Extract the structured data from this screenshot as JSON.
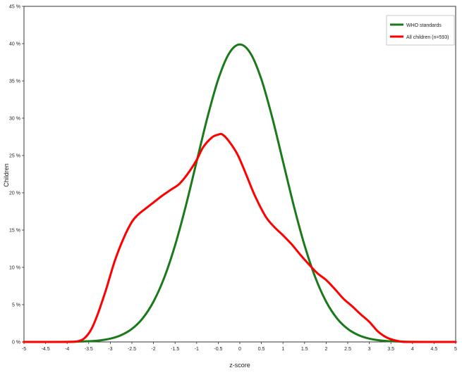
{
  "chart_data": {
    "type": "line",
    "xlabel": "z-score",
    "ylabel": "Children",
    "xlim": [
      -5,
      5
    ],
    "ylim": [
      0,
      45
    ],
    "x_ticks": [
      "-5",
      "-4.5",
      "-4",
      "-3.5",
      "-3",
      "-2.5",
      "-2",
      "-1.5",
      "-1",
      "-0.5",
      "0",
      "0.5",
      "1",
      "1.5",
      "2",
      "2.5",
      "3",
      "3.5",
      "4",
      "4.5",
      "5"
    ],
    "y_ticks": [
      "0 %",
      "5 %",
      "10 %",
      "15 %",
      "20 %",
      "25 %",
      "30 %",
      "35 %",
      "40 %",
      "45 %"
    ],
    "grid": false,
    "legend_position": "top-right",
    "series": [
      {
        "name": "WHO standards",
        "color": "#1a7a1a",
        "x": [
          -5,
          -4.5,
          -4,
          -3.5,
          -3.25,
          -3,
          -2.75,
          -2.5,
          -2.25,
          -2,
          -1.75,
          -1.5,
          -1.25,
          -1,
          -0.75,
          -0.5,
          -0.25,
          0,
          0.25,
          0.5,
          0.75,
          1,
          1.25,
          1.5,
          1.75,
          2,
          2.25,
          2.5,
          2.75,
          3,
          3.25,
          3.5,
          4,
          4.5,
          5
        ],
        "y": [
          0,
          0,
          0.01,
          0.09,
          0.2,
          0.44,
          0.91,
          1.75,
          3.17,
          5.4,
          8.63,
          12.95,
          18.26,
          24.2,
          30.11,
          35.21,
          38.67,
          39.89,
          38.67,
          35.21,
          30.11,
          24.2,
          18.26,
          12.95,
          8.63,
          5.4,
          3.17,
          1.75,
          0.91,
          0.44,
          0.2,
          0.09,
          0.01,
          0,
          0
        ]
      },
      {
        "name": "All children (n=593)",
        "color": "#ff0000",
        "x": [
          -5,
          -4,
          -3.75,
          -3.6,
          -3.45,
          -3.3,
          -3.1,
          -2.9,
          -2.7,
          -2.5,
          -2.35,
          -2.2,
          -2,
          -1.8,
          -1.6,
          -1.4,
          -1.2,
          -1,
          -0.85,
          -0.65,
          -0.5,
          -0.4,
          -0.25,
          -0.05,
          0.15,
          0.35,
          0.6,
          0.8,
          1,
          1.2,
          1.4,
          1.6,
          1.8,
          2,
          2.2,
          2.4,
          2.6,
          2.8,
          3,
          3.2,
          3.4,
          3.6,
          3.8,
          4,
          5
        ],
        "y": [
          0,
          0,
          0.1,
          0.5,
          1.6,
          3.6,
          7,
          10.8,
          13.8,
          16.1,
          17.1,
          17.8,
          18.7,
          19.6,
          20.4,
          21.2,
          22.6,
          24.4,
          26.1,
          27.4,
          27.8,
          27.8,
          26.9,
          25.1,
          22.4,
          19.6,
          16.8,
          15.4,
          14.3,
          13.1,
          11.7,
          10.4,
          9.2,
          8.3,
          7.1,
          5.8,
          4.8,
          3.7,
          2.7,
          1.4,
          0.6,
          0.2,
          0,
          0,
          0
        ]
      }
    ]
  }
}
